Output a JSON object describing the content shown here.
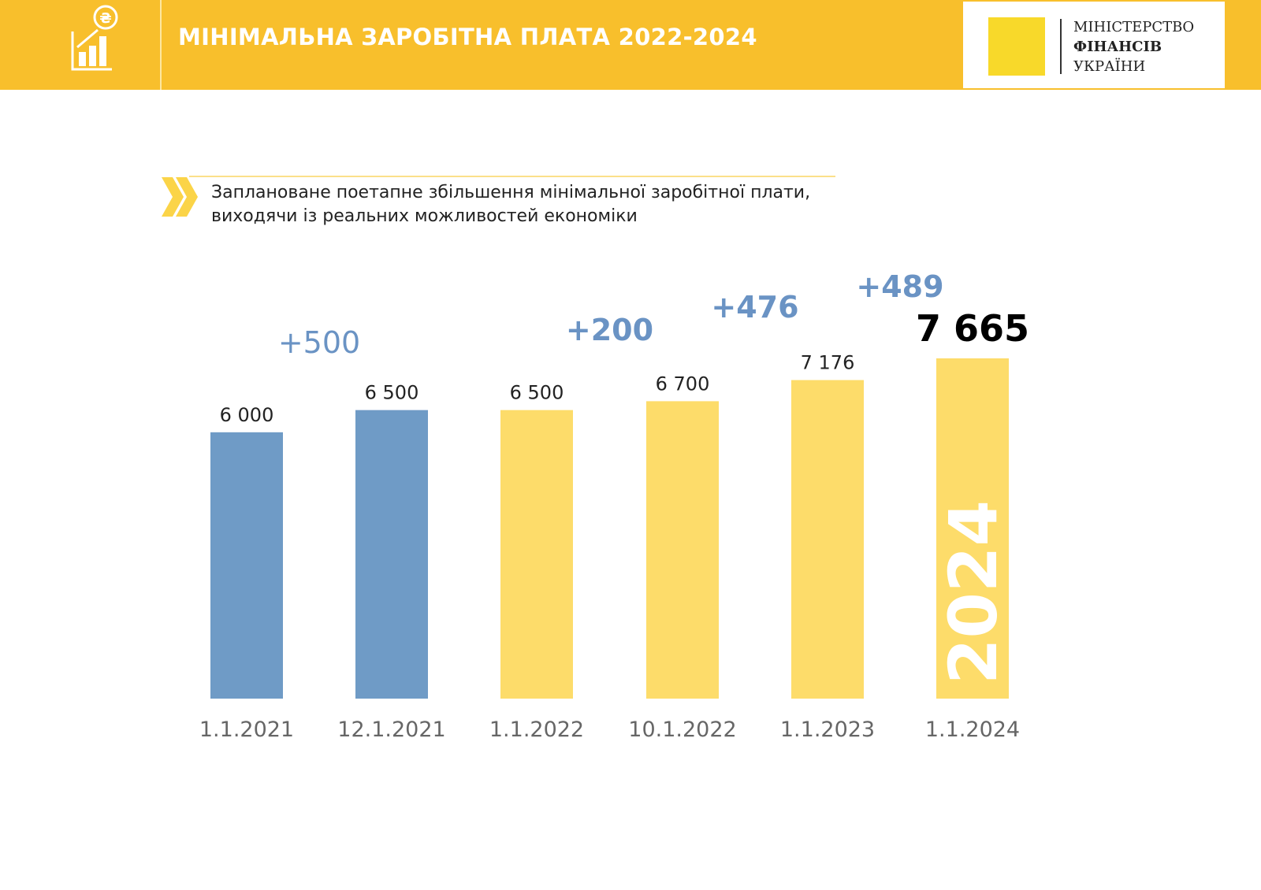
{
  "header": {
    "title": "МІНІМАЛЬНА ЗАРОБІТНА ПЛАТА 2022-2024",
    "icon": "growth-chart-hryvnia-icon",
    "logo_lines": [
      "МІНІСТЕРСТВО",
      "ФІНАНСІВ",
      "УКРАЇНИ"
    ]
  },
  "subtitle": [
    "Заплановане поетапне збільшення мінімальної заробітної плати,",
    "виходячи із реальних можливостей економіки"
  ],
  "colors": {
    "header": "#f8bf2c",
    "past": "#6f9bc6",
    "planned": "#fddc6a",
    "delta": "#6a93c4"
  },
  "chart_data": {
    "type": "bar",
    "categories": [
      "1.1.2021",
      "12.1.2021",
      "1.1.2022",
      "10.1.2022",
      "1.1.2023",
      "1.1.2024"
    ],
    "values": [
      6000,
      6500,
      6500,
      6700,
      7176,
      7665
    ],
    "value_labels": [
      "6 000",
      "6 500",
      "6 500",
      "6 700",
      "7 176",
      "7 665"
    ],
    "bar_colors": [
      "#6f9bc6",
      "#6f9bc6",
      "#fddc6a",
      "#fddc6a",
      "#fddc6a",
      "#fddc6a"
    ],
    "annotations": [
      {
        "text": "+500",
        "between": [
          0,
          1
        ]
      },
      {
        "text": "+200",
        "between": [
          2,
          3
        ]
      },
      {
        "text": "+476",
        "between": [
          3,
          4
        ]
      },
      {
        "text": "+489",
        "between": [
          4,
          5
        ]
      }
    ],
    "bar_overlay_text": "2024",
    "ylim": [
      0,
      7665
    ],
    "grid": false
  }
}
